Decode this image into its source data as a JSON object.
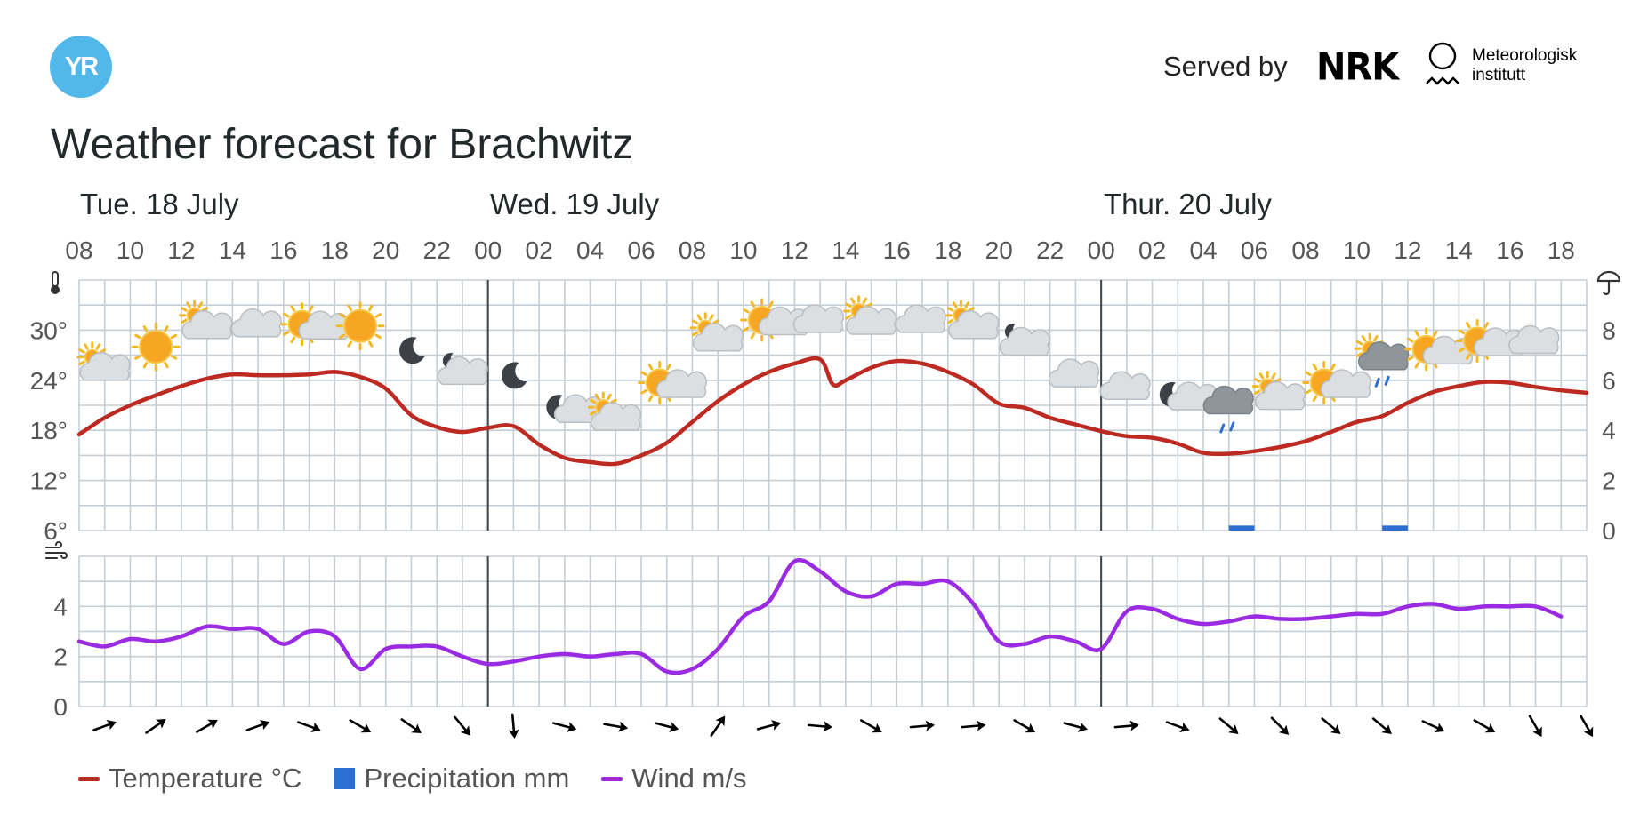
{
  "header": {
    "logo_text": "YR",
    "served_by": "Served by",
    "nrk": "NRK",
    "met_line1": "Meteorologisk",
    "met_line2": "institutt"
  },
  "title": "Weather forecast for Brachwitz",
  "legend": {
    "temperature": "Temperature °C",
    "precipitation": "Precipitation mm",
    "wind": "Wind m/s"
  },
  "colors": {
    "temperature": "#bd2a22",
    "precipitation": "#2b6fd3",
    "wind": "#9b2be3",
    "grid": "#c5cdd5",
    "day_divider": "#3b434c",
    "logo": "#52b8ea"
  },
  "chart_data": {
    "type": "line",
    "days": [
      {
        "label": "Tue. 18 July",
        "start_hour": 8
      },
      {
        "label": "Wed. 19 July",
        "start_hour": 24
      },
      {
        "label": "Thur. 20 July",
        "start_hour": 48
      }
    ],
    "hour_ticks": [
      "08",
      "10",
      "12",
      "14",
      "16",
      "18",
      "20",
      "22",
      "00",
      "02",
      "04",
      "06",
      "08",
      "10",
      "12",
      "14",
      "16",
      "18",
      "20",
      "22",
      "00",
      "02",
      "04",
      "06",
      "08",
      "10",
      "12",
      "14",
      "16",
      "18"
    ],
    "x_hours_range": [
      8,
      67
    ],
    "temp_axis": {
      "ticks": [
        "30°",
        "24°",
        "18°",
        "12°",
        "6°"
      ],
      "values": [
        30,
        24,
        18,
        12,
        6
      ],
      "ylim": [
        6,
        36
      ]
    },
    "precip_axis": {
      "ticks": [
        "8",
        "6",
        "4",
        "2",
        "0"
      ],
      "values": [
        8,
        6,
        4,
        2,
        0
      ],
      "ylim": [
        0,
        10
      ]
    },
    "wind_axis": {
      "ticks": [
        "4",
        "2",
        "0"
      ],
      "values": [
        4,
        2,
        0
      ],
      "ylim": [
        0,
        6
      ]
    },
    "temperature": [
      [
        8,
        17.5
      ],
      [
        9,
        19.5
      ],
      [
        10,
        21.0
      ],
      [
        11,
        22.2
      ],
      [
        12,
        23.3
      ],
      [
        13,
        24.2
      ],
      [
        14,
        24.7
      ],
      [
        15,
        24.6
      ],
      [
        16,
        24.6
      ],
      [
        17,
        24.7
      ],
      [
        18,
        25.0
      ],
      [
        19,
        24.4
      ],
      [
        20,
        23.0
      ],
      [
        21,
        19.8
      ],
      [
        22,
        18.4
      ],
      [
        23,
        17.8
      ],
      [
        24,
        18.3
      ],
      [
        25,
        18.5
      ],
      [
        26,
        16.3
      ],
      [
        27,
        14.7
      ],
      [
        28,
        14.2
      ],
      [
        29,
        14.0
      ],
      [
        30,
        15.0
      ],
      [
        31,
        16.5
      ],
      [
        32,
        19.0
      ],
      [
        33,
        21.5
      ],
      [
        34,
        23.5
      ],
      [
        35,
        25.0
      ],
      [
        36,
        26.0
      ],
      [
        37,
        26.5
      ],
      [
        37.5,
        23.5
      ],
      [
        38,
        24.0
      ],
      [
        39,
        25.5
      ],
      [
        40,
        26.3
      ],
      [
        41,
        26.0
      ],
      [
        42,
        25.0
      ],
      [
        43,
        23.5
      ],
      [
        44,
        21.2
      ],
      [
        45,
        20.7
      ],
      [
        46,
        19.5
      ],
      [
        47,
        18.7
      ],
      [
        48,
        17.9
      ],
      [
        49,
        17.3
      ],
      [
        50,
        17.1
      ],
      [
        51,
        16.4
      ],
      [
        52,
        15.3
      ],
      [
        53,
        15.2
      ],
      [
        54,
        15.5
      ],
      [
        55,
        16.0
      ],
      [
        56,
        16.7
      ],
      [
        57,
        17.8
      ],
      [
        58,
        19.0
      ],
      [
        59,
        19.7
      ],
      [
        60,
        21.3
      ],
      [
        61,
        22.6
      ],
      [
        62,
        23.3
      ],
      [
        63,
        23.8
      ],
      [
        64,
        23.7
      ],
      [
        65,
        23.2
      ],
      [
        66,
        22.8
      ],
      [
        67,
        22.5
      ]
    ],
    "wind": [
      [
        8,
        2.6
      ],
      [
        9,
        2.4
      ],
      [
        10,
        2.7
      ],
      [
        11,
        2.6
      ],
      [
        12,
        2.8
      ],
      [
        13,
        3.2
      ],
      [
        14,
        3.1
      ],
      [
        15,
        3.1
      ],
      [
        16,
        2.5
      ],
      [
        17,
        3.0
      ],
      [
        18,
        2.8
      ],
      [
        19,
        1.5
      ],
      [
        20,
        2.3
      ],
      [
        21,
        2.4
      ],
      [
        22,
        2.4
      ],
      [
        23,
        2.0
      ],
      [
        24,
        1.7
      ],
      [
        25,
        1.8
      ],
      [
        26,
        2.0
      ],
      [
        27,
        2.1
      ],
      [
        28,
        2.0
      ],
      [
        29,
        2.1
      ],
      [
        30,
        2.1
      ],
      [
        31,
        1.4
      ],
      [
        32,
        1.5
      ],
      [
        33,
        2.3
      ],
      [
        34,
        3.6
      ],
      [
        35,
        4.2
      ],
      [
        36,
        5.8
      ],
      [
        37,
        5.4
      ],
      [
        38,
        4.6
      ],
      [
        39,
        4.4
      ],
      [
        40,
        4.9
      ],
      [
        41,
        4.9
      ],
      [
        42,
        5.0
      ],
      [
        43,
        4.1
      ],
      [
        44,
        2.6
      ],
      [
        45,
        2.5
      ],
      [
        46,
        2.8
      ],
      [
        47,
        2.6
      ],
      [
        48,
        2.3
      ],
      [
        49,
        3.8
      ],
      [
        50,
        3.9
      ],
      [
        51,
        3.5
      ],
      [
        52,
        3.3
      ],
      [
        53,
        3.4
      ],
      [
        54,
        3.6
      ],
      [
        55,
        3.5
      ],
      [
        56,
        3.5
      ],
      [
        57,
        3.6
      ],
      [
        58,
        3.7
      ],
      [
        59,
        3.7
      ],
      [
        60,
        4.0
      ],
      [
        61,
        4.1
      ],
      [
        62,
        3.9
      ],
      [
        63,
        4.0
      ],
      [
        64,
        4.0
      ],
      [
        65,
        4.0
      ],
      [
        66,
        3.6
      ]
    ],
    "precipitation": [
      {
        "hour": 53,
        "value": 0.2
      },
      {
        "hour": 59,
        "value": 0.2
      }
    ],
    "symbols": [
      {
        "hour": 9,
        "temp_level": 25.5,
        "icon": "partly-cloudy-day"
      },
      {
        "hour": 11,
        "temp_level": 28.0,
        "icon": "clear-sky-day"
      },
      {
        "hour": 13,
        "temp_level": 30.5,
        "icon": "partly-cloudy-day"
      },
      {
        "hour": 15,
        "temp_level": 30.5,
        "icon": "cloudy"
      },
      {
        "hour": 17,
        "temp_level": 30.5,
        "icon": "fair-day"
      },
      {
        "hour": 19,
        "temp_level": 30.5,
        "icon": "clear-sky-day"
      },
      {
        "hour": 21,
        "temp_level": 27.5,
        "icon": "clear-sky-night"
      },
      {
        "hour": 23,
        "temp_level": 25.0,
        "icon": "partly-cloudy-night"
      },
      {
        "hour": 25,
        "temp_level": 24.5,
        "icon": "clear-sky-night"
      },
      {
        "hour": 27,
        "temp_level": 20.5,
        "icon": "fair-night"
      },
      {
        "hour": 29,
        "temp_level": 19.5,
        "icon": "partly-cloudy-day"
      },
      {
        "hour": 31,
        "temp_level": 23.5,
        "icon": "fair-day"
      },
      {
        "hour": 33,
        "temp_level": 29.0,
        "icon": "partly-cloudy-day"
      },
      {
        "hour": 35,
        "temp_level": 31.0,
        "icon": "fair-day"
      },
      {
        "hour": 37,
        "temp_level": 31.0,
        "icon": "cloudy"
      },
      {
        "hour": 39,
        "temp_level": 31.0,
        "icon": "partly-cloudy-day"
      },
      {
        "hour": 41,
        "temp_level": 31.0,
        "icon": "cloudy"
      },
      {
        "hour": 43,
        "temp_level": 30.5,
        "icon": "partly-cloudy-day"
      },
      {
        "hour": 45,
        "temp_level": 28.5,
        "icon": "partly-cloudy-night"
      },
      {
        "hour": 47,
        "temp_level": 24.5,
        "icon": "cloudy"
      },
      {
        "hour": 49,
        "temp_level": 23.0,
        "icon": "cloudy"
      },
      {
        "hour": 51,
        "temp_level": 22.0,
        "icon": "fair-night"
      },
      {
        "hour": 53,
        "temp_level": 21.0,
        "icon": "rain"
      },
      {
        "hour": 55,
        "temp_level": 22.0,
        "icon": "partly-cloudy-day"
      },
      {
        "hour": 57,
        "temp_level": 23.5,
        "icon": "fair-day"
      },
      {
        "hour": 59,
        "temp_level": 26.5,
        "icon": "rain-showers-day"
      },
      {
        "hour": 61,
        "temp_level": 27.5,
        "icon": "fair-day"
      },
      {
        "hour": 63,
        "temp_level": 28.5,
        "icon": "fair-day"
      },
      {
        "hour": 65,
        "temp_level": 28.5,
        "icon": "cloudy"
      }
    ],
    "wind_direction_angles": [
      -20,
      -35,
      -30,
      -20,
      20,
      30,
      35,
      50,
      85,
      15,
      10,
      15,
      -55,
      -15,
      5,
      30,
      -5,
      -5,
      30,
      15,
      -5,
      20,
      40,
      45,
      40,
      40,
      25,
      30,
      60,
      60
    ]
  }
}
